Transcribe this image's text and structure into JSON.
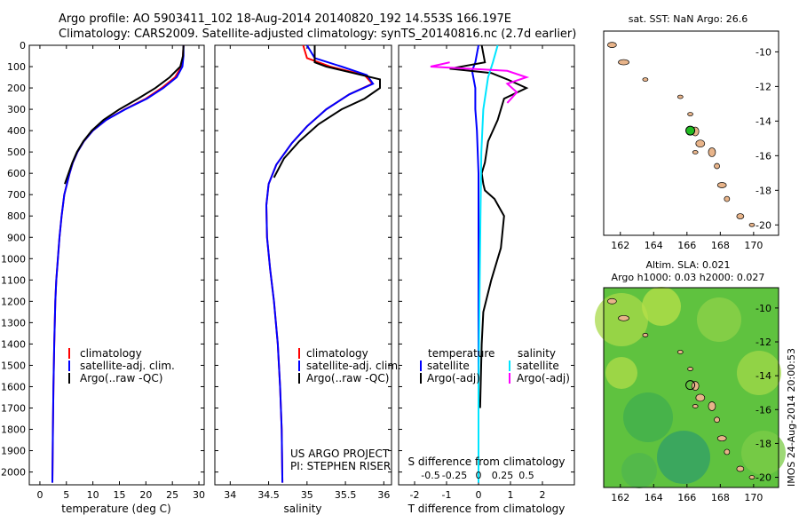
{
  "header": {
    "line1": "Argo profile: AO 5903411_102 18-Aug-2014 20140820_192 14.553S 166.197E",
    "line2": "Climatology: CARS2009. Satellite-adjusted climatology: synTS_20140816.nc (2.7d earlier)"
  },
  "colors": {
    "climatology": "#ff0000",
    "satellite": "#0000ff",
    "argo": "#000000",
    "sal_satellite": "#00e5ff",
    "sal_argo": "#ff00ff"
  },
  "chart_data": [
    {
      "id": "temperature",
      "type": "line",
      "xlabel": "temperature (deg C)",
      "xlim": [
        -2,
        31
      ],
      "xticks": [
        0,
        5,
        10,
        15,
        20,
        25,
        30
      ],
      "ylim": [
        2060,
        0
      ],
      "yticks": [
        0,
        100,
        200,
        300,
        400,
        500,
        600,
        700,
        800,
        900,
        1000,
        1100,
        1200,
        1300,
        1400,
        1500,
        1600,
        1700,
        1800,
        1900,
        2000
      ],
      "legend": [
        "climatology",
        "satellite-adj. clim.",
        "Argo(..raw -QC)"
      ],
      "series": [
        {
          "name": "climatology",
          "x": [
            27.1,
            27,
            26.7,
            25.5,
            23,
            20,
            16,
            12.5,
            10,
            8.3,
            7.1,
            6.2,
            5.6,
            5.1,
            4.6,
            4.1,
            3.7,
            3.4,
            3.1,
            2.9,
            2.7,
            2.55,
            2.45,
            2.35
          ],
          "y": [
            0,
            50,
            100,
            150,
            200,
            250,
            300,
            350,
            400,
            450,
            500,
            550,
            600,
            650,
            700,
            800,
            900,
            1000,
            1100,
            1200,
            1400,
            1600,
            1800,
            2050
          ]
        },
        {
          "name": "satellite-adj. clim.",
          "x": [
            27.1,
            27.1,
            26.9,
            25.8,
            23.3,
            20.2,
            16.1,
            12.5,
            10,
            8.3,
            7.1,
            6.2,
            5.6,
            5.1,
            4.6,
            4.1,
            3.7,
            3.4,
            3.1,
            2.9,
            2.7,
            2.55,
            2.45,
            2.35
          ],
          "y": [
            0,
            50,
            100,
            150,
            200,
            250,
            300,
            350,
            400,
            450,
            500,
            550,
            600,
            650,
            700,
            800,
            900,
            1000,
            1100,
            1200,
            1400,
            1600,
            1800,
            2050
          ]
        },
        {
          "name": "Argo(..raw -QC)",
          "x": [
            27.1,
            27,
            26.5,
            24.5,
            21.8,
            18.5,
            15,
            12,
            9.8,
            8.2,
            7,
            6.1,
            5.4,
            4.7
          ],
          "y": [
            0,
            50,
            100,
            150,
            200,
            250,
            300,
            350,
            400,
            450,
            500,
            550,
            600,
            650
          ]
        }
      ]
    },
    {
      "id": "salinity",
      "type": "line",
      "xlabel": "salinity",
      "xlim": [
        33.8,
        36.1
      ],
      "xticks": [
        34,
        34.5,
        35,
        35.5,
        36
      ],
      "ylim": [
        2060,
        0
      ],
      "legend": [
        "climatology",
        "satellite-adj. clim.",
        "Argo(..raw -QC)"
      ],
      "series": [
        {
          "name": "climatology",
          "x": [
            34.95,
            35.0,
            35.3,
            35.75,
            35.85,
            35.55,
            35.25,
            35.0,
            34.8,
            34.6,
            34.5,
            34.47,
            34.48,
            34.52,
            34.57,
            34.62,
            34.65,
            34.67,
            34.68
          ],
          "y": [
            0,
            60,
            100,
            140,
            180,
            230,
            300,
            380,
            460,
            560,
            650,
            750,
            900,
            1050,
            1200,
            1400,
            1600,
            1800,
            2050
          ]
        },
        {
          "name": "satellite-adj. clim.",
          "x": [
            35.0,
            35.1,
            35.45,
            35.78,
            35.86,
            35.55,
            35.25,
            35.0,
            34.8,
            34.6,
            34.5,
            34.47,
            34.48,
            34.52,
            34.57,
            34.62,
            34.65,
            34.67,
            34.68
          ],
          "y": [
            0,
            60,
            100,
            140,
            180,
            230,
            300,
            380,
            460,
            560,
            650,
            750,
            900,
            1050,
            1200,
            1400,
            1600,
            1800,
            2050
          ]
        },
        {
          "name": "Argo(..raw -QC)",
          "x": [
            35.1,
            35.1,
            35.25,
            35.6,
            35.95,
            35.95,
            35.75,
            35.45,
            35.15,
            34.9,
            34.7,
            34.57
          ],
          "y": [
            0,
            80,
            100,
            130,
            160,
            200,
            250,
            300,
            370,
            450,
            530,
            620
          ]
        }
      ]
    },
    {
      "id": "difference",
      "type": "line",
      "xlabel": "T difference from climatology",
      "xlabel2": "S difference from climatology",
      "xlim": [
        -2.5,
        3
      ],
      "xticks": [
        -2,
        -1,
        0,
        1,
        2
      ],
      "xticks2_values": [
        -0.5,
        -0.25,
        0,
        0.25,
        0.5
      ],
      "xticks2_labels": [
        "-0.5",
        "-0.25",
        "0",
        "0.25",
        "0.5"
      ],
      "ylim": [
        2060,
        0
      ],
      "legend_left_title": "temperature",
      "legend_right_title": "salinity",
      "legend": [
        "satellite",
        "Argo(-adj)",
        "satellite",
        "Argo(-adj)"
      ],
      "series": [
        {
          "name": "satellite",
          "x": [
            0,
            -0.1,
            -0.2,
            -0.1,
            -0.1,
            -0.05,
            0,
            0,
            0,
            0,
            0
          ],
          "y": [
            0,
            80,
            120,
            200,
            300,
            400,
            600,
            800,
            1200,
            1600,
            2050
          ]
        },
        {
          "name": "Argo(-adj)",
          "x": [
            0.1,
            0.2,
            -0.9,
            0.4,
            0.9,
            1.5,
            0.8,
            0.6,
            0.3,
            0.2,
            0.1,
            0.15,
            0.2,
            0.5,
            0.8,
            0.7,
            0.4,
            0.15,
            0.1,
            0.05
          ],
          "y": [
            0,
            80,
            110,
            130,
            160,
            200,
            250,
            350,
            450,
            550,
            600,
            650,
            680,
            720,
            800,
            950,
            1100,
            1250,
            1400,
            1700
          ]
        },
        {
          "name": "satellite",
          "x": [
            0.2,
            0.15,
            0.1,
            0.05,
            0.03,
            0.02,
            0.01,
            0,
            0
          ],
          "y": [
            0,
            80,
            150,
            300,
            500,
            800,
            1200,
            1600,
            2050
          ]
        },
        {
          "name": "Argo(-adj)",
          "x": [
            -0.3,
            -0.5,
            0.3,
            0.5,
            0.3,
            0.4,
            0.3
          ],
          "y": [
            80,
            100,
            120,
            150,
            180,
            220,
            270
          ]
        }
      ]
    }
  ],
  "map_top": {
    "title": "sat. SST: NaN  Argo: 26.6",
    "xticks": [
      "162",
      "164",
      "166",
      "168",
      "170"
    ],
    "yticks": [
      "-10",
      "-12",
      "-14",
      "-16",
      "-18",
      "-20"
    ],
    "marker": {
      "lon": 166.2,
      "lat": -14.55
    }
  },
  "map_bottom": {
    "title1": "Altim. SLA: 0.021",
    "title2": "Argo h1000: 0.03 h2000: 0.027",
    "xticks": [
      "162",
      "164",
      "166",
      "168",
      "170"
    ],
    "yticks": [
      "-10",
      "-12",
      "-14",
      "-16",
      "-18",
      "-20"
    ],
    "marker": {
      "lon": 166.2,
      "lat": -14.55
    }
  },
  "annotations": {
    "project": "US ARGO PROJECT",
    "pi": "PI: STEPHEN RISER",
    "imos": "IMOS 24-Aug-2014 20:00:53"
  }
}
